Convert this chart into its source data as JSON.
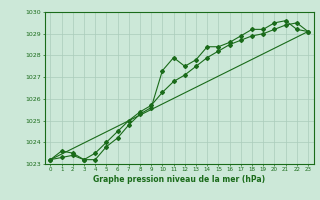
{
  "line1_x": [
    0,
    1,
    2,
    3,
    4,
    5,
    6,
    7,
    8,
    9,
    10,
    11,
    12,
    13,
    14,
    15,
    16,
    17,
    18,
    19,
    20,
    21,
    22,
    23
  ],
  "line1_y": [
    1023.2,
    1023.6,
    1023.5,
    1023.2,
    1023.2,
    1023.8,
    1024.2,
    1024.8,
    1025.3,
    1025.6,
    1027.3,
    1027.9,
    1027.5,
    1027.8,
    1028.4,
    1028.4,
    1028.6,
    1028.9,
    1029.2,
    1029.2,
    1029.5,
    1029.6,
    1029.2,
    1029.1
  ],
  "line2_x": [
    0,
    1,
    2,
    3,
    4,
    5,
    6,
    7,
    8,
    9,
    10,
    11,
    12,
    13,
    14,
    15,
    16,
    17,
    18,
    19,
    20,
    21,
    22,
    23
  ],
  "line2_y": [
    1023.2,
    1023.3,
    1023.4,
    1023.2,
    1023.5,
    1024.0,
    1024.5,
    1025.0,
    1025.4,
    1025.7,
    1026.3,
    1026.8,
    1027.1,
    1027.5,
    1027.9,
    1028.2,
    1028.5,
    1028.7,
    1028.9,
    1029.0,
    1029.2,
    1029.4,
    1029.5,
    1029.1
  ],
  "trend_x": [
    0,
    23
  ],
  "trend_y": [
    1023.2,
    1029.1
  ],
  "line_color": "#1a6b1a",
  "bg_color": "#cce8d8",
  "grid_color": "#aaccbb",
  "xlabel": "Graphe pression niveau de la mer (hPa)",
  "ylim": [
    1023.0,
    1030.0
  ],
  "xlim": [
    -0.5,
    23.5
  ],
  "yticks": [
    1023,
    1024,
    1025,
    1026,
    1027,
    1028,
    1029,
    1030
  ],
  "xticks": [
    0,
    1,
    2,
    3,
    4,
    5,
    6,
    7,
    8,
    9,
    10,
    11,
    12,
    13,
    14,
    15,
    16,
    17,
    18,
    19,
    20,
    21,
    22,
    23
  ]
}
